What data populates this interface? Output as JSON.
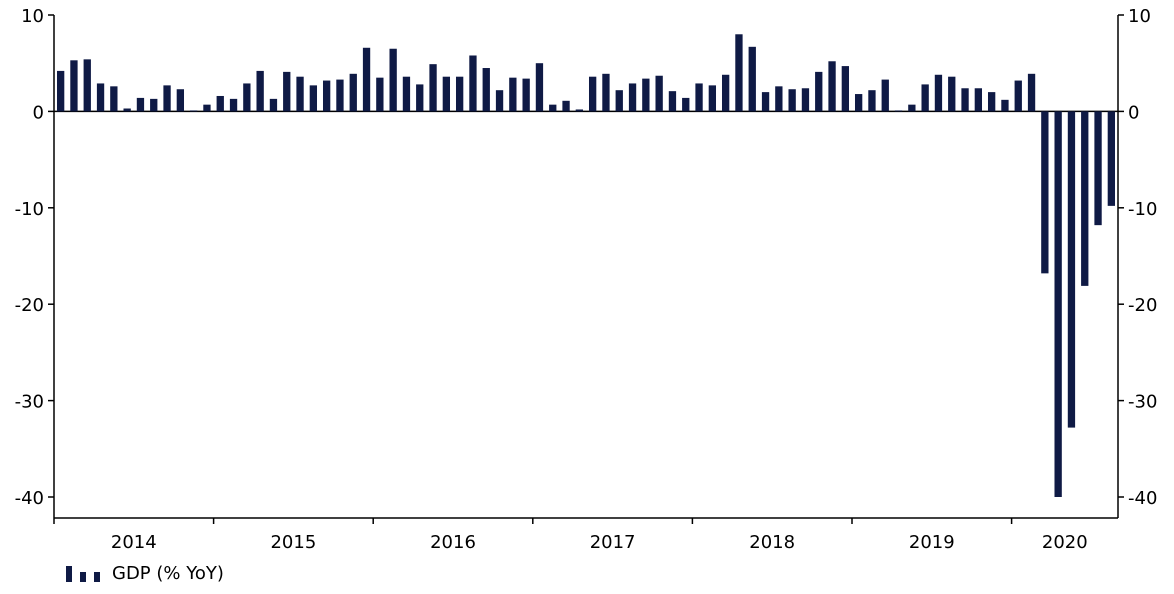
{
  "chart_data": {
    "type": "bar",
    "title": "",
    "xlabel": "",
    "ylabel": "",
    "ylim": [
      -40,
      10
    ],
    "y_ticks": [
      "10",
      "0",
      "-10",
      "-20",
      "-30",
      "-40"
    ],
    "y_tick_values": [
      10,
      0,
      -10,
      -20,
      -30,
      -40
    ],
    "secondary_y_axis": true,
    "x_axis_labels": [
      "2014",
      "2015",
      "2016",
      "2017",
      "2018",
      "2019",
      "2020"
    ],
    "grid": false,
    "legend_position": "bottom-left",
    "bar_color": "#0f1a45",
    "series": [
      {
        "name": "GDP (% YoY)",
        "categories": [
          "2014-01",
          "2014-02",
          "2014-03",
          "2014-04",
          "2014-05",
          "2014-06",
          "2014-07",
          "2014-08",
          "2014-09",
          "2014-10",
          "2014-11",
          "2014-12",
          "2015-01",
          "2015-02",
          "2015-03",
          "2015-04",
          "2015-05",
          "2015-06",
          "2015-07",
          "2015-08",
          "2015-09",
          "2015-10",
          "2015-11",
          "2015-12",
          "2016-01",
          "2016-02",
          "2016-03",
          "2016-04",
          "2016-05",
          "2016-06",
          "2016-07",
          "2016-08",
          "2016-09",
          "2016-10",
          "2016-11",
          "2016-12",
          "2017-01",
          "2017-02",
          "2017-03",
          "2017-04",
          "2017-05",
          "2017-06",
          "2017-07",
          "2017-08",
          "2017-09",
          "2017-10",
          "2017-11",
          "2017-12",
          "2018-01",
          "2018-02",
          "2018-03",
          "2018-04",
          "2018-05",
          "2018-06",
          "2018-07",
          "2018-08",
          "2018-09",
          "2018-10",
          "2018-11",
          "2018-12",
          "2019-01",
          "2019-02",
          "2019-03",
          "2019-04",
          "2019-05",
          "2019-06",
          "2019-07",
          "2019-08",
          "2019-09",
          "2019-10",
          "2019-11",
          "2019-12",
          "2020-01",
          "2020-02",
          "2020-03",
          "2020-04",
          "2020-05",
          "2020-06",
          "2020-07",
          "2020-08"
        ],
        "values": [
          4.2,
          5.3,
          5.4,
          2.9,
          2.6,
          0.3,
          1.4,
          1.3,
          2.7,
          2.3,
          0.1,
          0.7,
          1.6,
          1.3,
          2.9,
          4.2,
          1.3,
          4.1,
          3.6,
          2.7,
          3.2,
          3.3,
          3.9,
          6.6,
          3.5,
          6.5,
          3.6,
          2.8,
          4.9,
          3.6,
          3.6,
          5.8,
          4.5,
          2.2,
          3.5,
          3.4,
          5.0,
          0.7,
          1.1,
          0.2,
          3.6,
          3.9,
          2.2,
          2.9,
          3.4,
          3.7,
          2.1,
          1.4,
          2.9,
          2.7,
          3.8,
          8.0,
          6.7,
          2.0,
          2.6,
          2.3,
          2.4,
          4.1,
          5.2,
          4.7,
          1.8,
          2.2,
          3.3,
          0.1,
          0.7,
          2.8,
          3.8,
          3.6,
          2.4,
          2.4,
          2.0,
          1.2,
          3.2,
          3.9,
          -16.8,
          -40.0,
          -32.8,
          -18.1,
          -11.8,
          -9.8
        ]
      }
    ]
  },
  "legend": {
    "label": "GDP (% YoY)"
  }
}
